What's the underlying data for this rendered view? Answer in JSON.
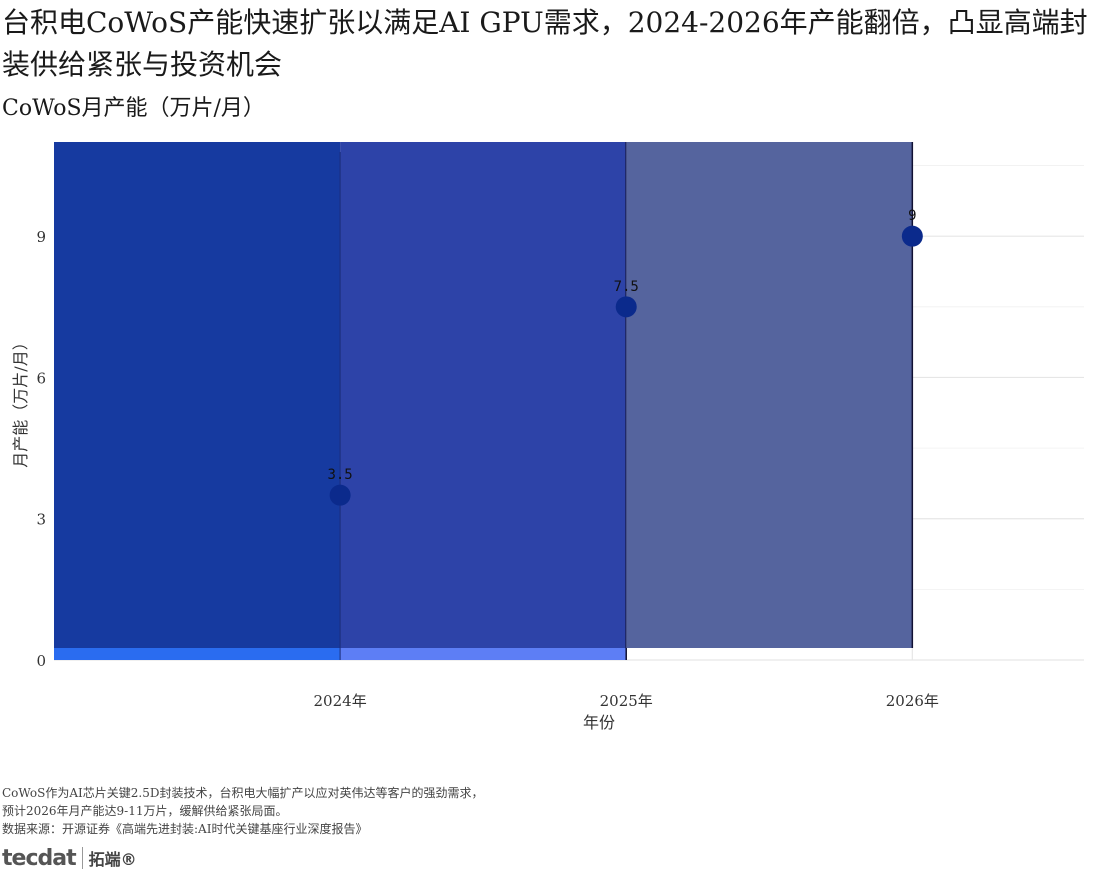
{
  "header": {
    "title": "台积电CoWoS产能快速扩张以满足AI GPU需求，2024-2026年产能翻倍，凸显高端封装供给紧张与投资机会",
    "subtitle": "CoWoS月产能（万片/月）"
  },
  "chart_data": {
    "type": "scatter",
    "categories": [
      "2024年",
      "2025年",
      "2026年"
    ],
    "values": [
      3.5,
      7.5,
      9
    ],
    "data_labels": [
      "3.5",
      "7.5",
      "9"
    ],
    "xlabel": "年份",
    "ylabel": "月产能（万片/月）",
    "ylim": [
      0,
      11
    ],
    "y_ticks": [
      0,
      3,
      6,
      9
    ],
    "y_tick_labels": [
      "0",
      "3",
      "6",
      "9"
    ],
    "grid": true,
    "point_color": "#0b2a8c",
    "background_bands": [
      {
        "from_category": "2024年",
        "to_category": "2025年",
        "color": "#2d43a8"
      },
      {
        "from_category": "2025年",
        "to_category": "2026年",
        "color": "#55649e"
      }
    ]
  },
  "caption": {
    "lines": [
      "CoWoS作为AI芯片关键2.5D封装技术，台积电大幅扩产以应对英伟达等客户的强劲需求，",
      "预计2026年月产能达9-11万片，缓解供给紧张局面。",
      "数据来源：开源证券《高端先进封装:AI时代关键基座行业深度报告》"
    ]
  },
  "logo": {
    "mark": "tecdat",
    "text": "拓端®"
  }
}
